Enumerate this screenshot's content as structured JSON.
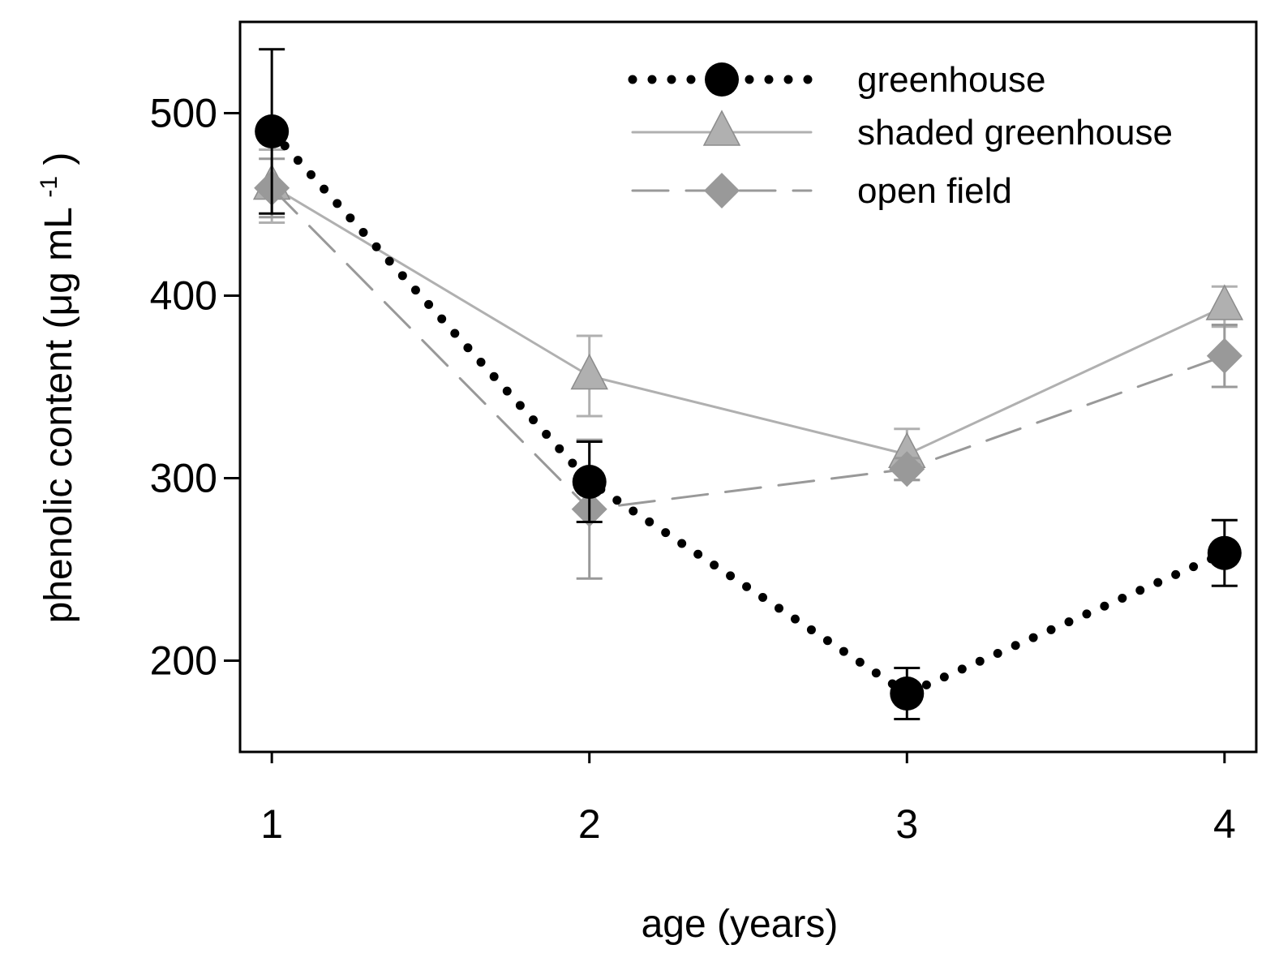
{
  "chart_data": {
    "type": "line",
    "title": "",
    "xlabel": "age (years)",
    "ylabel_main": "phenolic content (μg mL",
    "ylabel_sup": "-1",
    "ylabel_close": ")",
    "x": [
      1,
      2,
      3,
      4
    ],
    "xlim": [
      0.9,
      4.1
    ],
    "ylim": [
      150,
      550
    ],
    "x_ticks": [
      "1",
      "2",
      "3",
      "4"
    ],
    "y_ticks": [
      200,
      300,
      400,
      500
    ],
    "y_tick_labels": [
      "200",
      "300",
      "400",
      "500"
    ],
    "grid": false,
    "legend_position": "top-right",
    "series": [
      {
        "name": "greenhouse",
        "values": [
          490,
          298,
          182,
          259
        ],
        "errors": [
          45,
          22,
          14,
          18
        ],
        "color": "#000000",
        "marker": "circle",
        "line_style": "dotted"
      },
      {
        "name": "shaded greenhouse",
        "values": [
          460,
          356,
          313,
          394
        ],
        "errors": [
          20,
          22,
          14,
          11
        ],
        "color": "#b0b0b0",
        "marker": "triangle",
        "line_style": "solid"
      },
      {
        "name": "open field",
        "values": [
          459,
          283,
          305,
          367
        ],
        "errors": [
          16,
          38,
          6,
          17
        ],
        "color": "#999999",
        "marker": "diamond",
        "line_style": "dashed"
      }
    ]
  }
}
